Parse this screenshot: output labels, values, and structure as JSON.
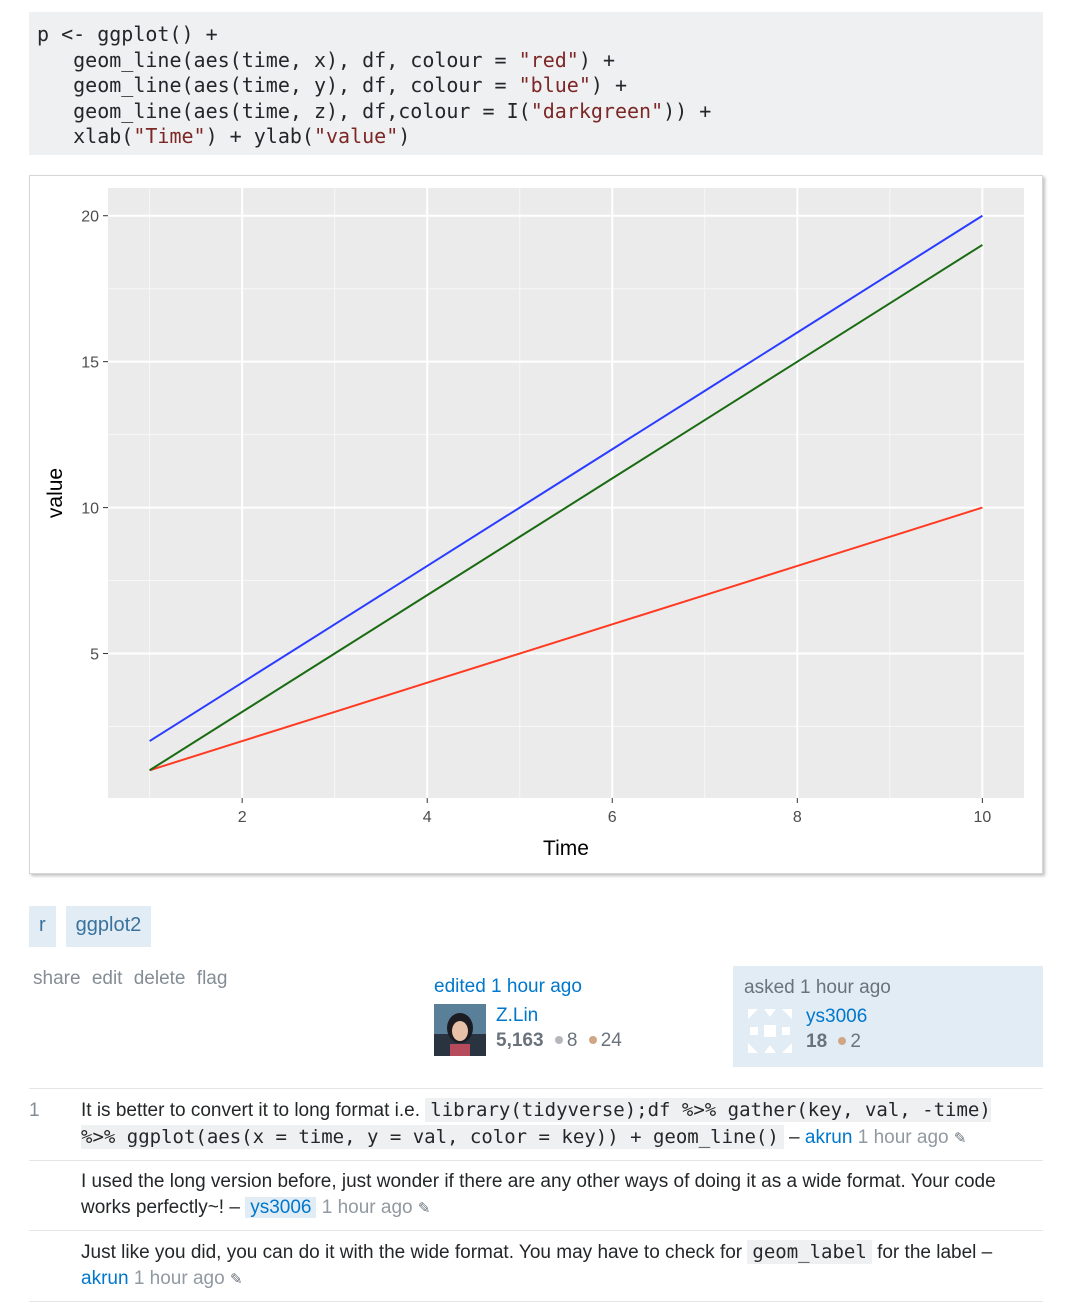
{
  "code": {
    "lines": [
      [
        {
          "t": "p <- ggplot() +"
        }
      ],
      [
        {
          "t": "   geom_line(aes(time, x), df, colour = "
        },
        {
          "t": "\"red\"",
          "s": 1
        },
        {
          "t": ") +"
        }
      ],
      [
        {
          "t": "   geom_line(aes(time, y), df, colour = "
        },
        {
          "t": "\"blue\"",
          "s": 1
        },
        {
          "t": ") +"
        }
      ],
      [
        {
          "t": "   geom_line(aes(time, z), df,colour = I("
        },
        {
          "t": "\"darkgreen\"",
          "s": 1
        },
        {
          "t": ")) +"
        }
      ],
      [
        {
          "t": "   xlab("
        },
        {
          "t": "\"Time\"",
          "s": 1
        },
        {
          "t": ") + ylab("
        },
        {
          "t": "\"value\"",
          "s": 1
        },
        {
          "t": ")"
        }
      ]
    ]
  },
  "chart_data": {
    "type": "line",
    "xlabel": "Time",
    "ylabel": "value",
    "xlim": [
      0.55,
      10.45
    ],
    "ylim": [
      0.05,
      20.95
    ],
    "x_ticks": [
      2,
      4,
      6,
      8,
      10
    ],
    "y_ticks": [
      5,
      10,
      15,
      20
    ],
    "background": "#EBEBEB",
    "grid": true,
    "series": [
      {
        "color": "#F8766D",
        "stroke": "#ff3a22",
        "x": [
          1,
          2,
          3,
          4,
          5,
          6,
          7,
          8,
          9,
          10
        ],
        "y": [
          1,
          2,
          3,
          4,
          5,
          6,
          7,
          8,
          9,
          10
        ]
      },
      {
        "color": "#0000FF",
        "stroke": "#2a3cff",
        "x": [
          1,
          2,
          3,
          4,
          5,
          6,
          7,
          8,
          9,
          10
        ],
        "y": [
          2,
          4,
          6,
          8,
          10,
          12,
          14,
          16,
          18,
          20
        ]
      },
      {
        "color": "#006400",
        "stroke": "#1a6b12",
        "x": [
          1,
          2,
          3,
          4,
          5,
          6,
          7,
          8,
          9,
          10
        ],
        "y": [
          1,
          3,
          5,
          7,
          9,
          11,
          13,
          15,
          17,
          19
        ]
      }
    ]
  },
  "tags": [
    "r",
    "ggplot2"
  ],
  "post_menu": [
    "share",
    "edit",
    "delete",
    "flag"
  ],
  "editor": {
    "action": "edited 1 hour ago",
    "name": "Z.Lin",
    "rep": "5,163",
    "silver": "8",
    "bronze": "24"
  },
  "asker": {
    "action": "asked 1 hour ago",
    "name": "ys3006",
    "rep": "18",
    "bronze": "2"
  },
  "comments": [
    {
      "score": "1",
      "text_before": "It is better to convert it to long format i.e. ",
      "code": "library(tidyverse);df %>% gather(key, val, -time) %>% ggplot(aes(x = time, y = val, color = key)) + geom_line()",
      "text_after": " – ",
      "user": "akrun",
      "time": "1 hour ago"
    },
    {
      "score": "",
      "text_before": "I used the long version before, just wonder if there are any other ways of doing it as a wide format. Your code works perfectly~! – ",
      "user": "ys3006",
      "time": "1 hour ago"
    },
    {
      "score": "",
      "text_before": "Just like you did, you can do it with the wide format. You may have to check for ",
      "code": "geom_label",
      "text_after": " for the label – ",
      "user": "akrun",
      "time": "1 hour ago"
    }
  ]
}
